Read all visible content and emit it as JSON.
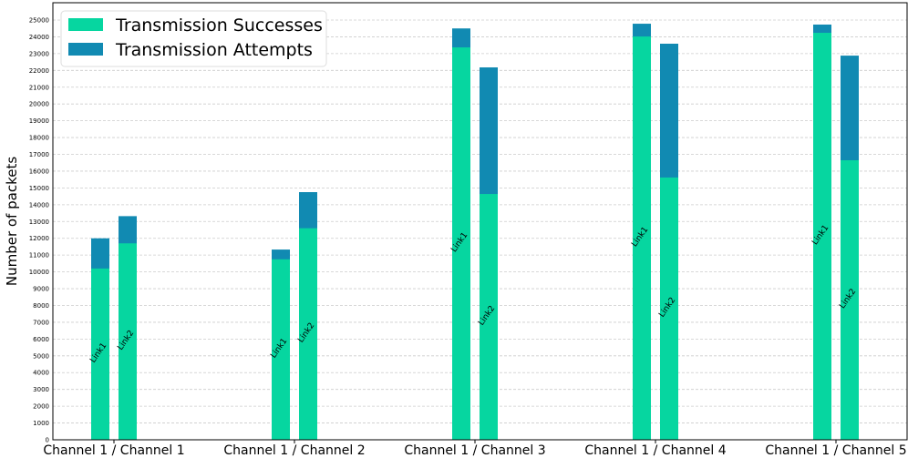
{
  "chart_data": {
    "type": "bar",
    "stacked": true,
    "ylabel": "Number of packets",
    "ylim": [
      0,
      25000
    ],
    "yticks": [
      0,
      1000,
      2000,
      3000,
      4000,
      5000,
      6000,
      7000,
      8000,
      9000,
      10000,
      11000,
      12000,
      13000,
      14000,
      15000,
      16000,
      17000,
      18000,
      19000,
      20000,
      21000,
      22000,
      23000,
      24000,
      25000
    ],
    "grid": true,
    "legend": "top-left",
    "categories": [
      "Channel 1 / Channel 1",
      "Channel 1 / Channel 2",
      "Channel 1 / Channel 3",
      "Channel 1 / Channel 4",
      "Channel 1 / Channel 5"
    ],
    "bar_labels": [
      "Link1",
      "Link2"
    ],
    "series": [
      {
        "name": "Transmission Successes",
        "color": "#06d6a0",
        "link1": [
          10200,
          10750,
          23370,
          24020,
          24240
        ],
        "link2": [
          11700,
          12600,
          14640,
          15620,
          16650
        ]
      },
      {
        "name": "Transmission Attempts",
        "color": "#118ab2",
        "link1": [
          12000,
          11330,
          24500,
          24780,
          24730
        ],
        "link2": [
          13320,
          14750,
          22180,
          23590,
          22880
        ]
      }
    ]
  }
}
